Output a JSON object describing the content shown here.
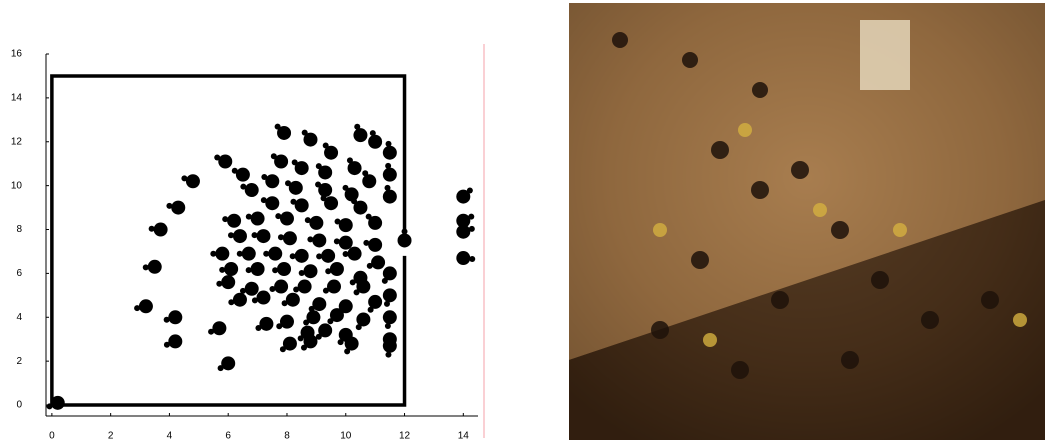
{
  "chart_data": {
    "type": "scatter",
    "x": [
      12,
      11.5,
      11.5,
      11.5,
      11.5,
      11.5,
      11.5,
      11.5,
      11.5,
      11,
      10.5,
      9.5,
      8.8,
      7.9,
      7.8,
      8.5,
      9.3,
      10.3,
      10.8,
      10.2,
      9.3,
      8.3,
      7.5,
      6.5,
      6.8,
      7.5,
      8.5,
      9.5,
      10.5,
      11,
      10,
      9,
      8,
      7,
      6.2,
      6.4,
      7.2,
      8.1,
      9.1,
      10,
      11,
      5.8,
      6.7,
      7.6,
      8.5,
      9.4,
      10.3,
      11.1,
      6.1,
      7,
      7.9,
      8.8,
      9.7,
      10.5,
      6,
      6.8,
      7.8,
      8.6,
      9.6,
      10.6,
      6.4,
      7.2,
      8.2,
      9.1,
      10,
      11,
      7.3,
      8,
      8.9,
      9.7,
      10.6,
      8.7,
      9.3,
      10,
      10.2,
      8.1,
      8.8,
      6,
      5.7,
      4.2,
      4.2,
      3.2,
      3.5,
      3.7,
      4.3,
      4.8,
      5.9,
      14,
      14,
      14,
      14,
      0.2
    ],
    "values": [
      7.5,
      6,
      5,
      4,
      3,
      2.7,
      9.5,
      10.5,
      11.5,
      12,
      12.3,
      11.5,
      12.1,
      12.4,
      11.1,
      10.8,
      10.6,
      10.8,
      10.2,
      9.6,
      9.8,
      9.9,
      10.2,
      10.5,
      9.8,
      9.2,
      9.1,
      9.2,
      9,
      8.3,
      8.2,
      8.3,
      8.5,
      8.5,
      8.4,
      7.7,
      7.7,
      7.6,
      7.5,
      7.4,
      7.3,
      6.9,
      6.9,
      6.9,
      6.8,
      6.8,
      6.9,
      6.5,
      6.2,
      6.2,
      6.2,
      6.1,
      6.2,
      5.8,
      5.6,
      5.3,
      5.4,
      5.4,
      5.4,
      5.4,
      4.8,
      4.9,
      4.8,
      4.6,
      4.5,
      4.7,
      3.7,
      3.8,
      4,
      4.1,
      3.9,
      3.3,
      3.4,
      3.2,
      2.8,
      2.8,
      2.9,
      1.9,
      3.5,
      4,
      2.9,
      4.5,
      6.3,
      8,
      9,
      10.2,
      11.1,
      9.5,
      8.4,
      6.7,
      7.9,
      0.1
    ],
    "color": "#000000",
    "walls": {
      "x": [
        12,
        12,
        0,
        0,
        12,
        12
      ],
      "y": [
        7.2,
        15,
        15,
        0,
        0,
        6.8
      ]
    },
    "xlim": [
      -0.2,
      14.5
    ],
    "ylim": [
      -0.5,
      16
    ],
    "xticks": [
      0,
      2,
      4,
      6,
      8,
      10,
      12,
      14
    ],
    "yticks": [
      0,
      2,
      4,
      6,
      8,
      10,
      12,
      14,
      16
    ]
  }
}
